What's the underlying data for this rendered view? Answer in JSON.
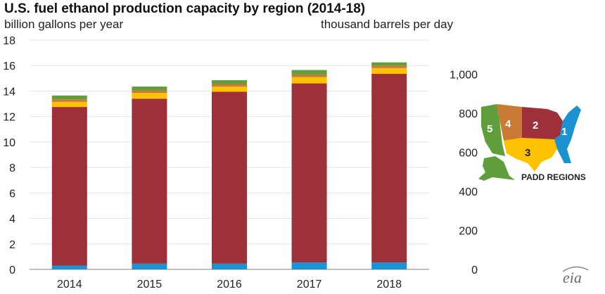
{
  "chart_data": {
    "type": "bar",
    "stacked": true,
    "title": "U.S. fuel ethanol production capacity by region (2014-18)",
    "ylabel_left": "billion gallons per year",
    "ylabel_right": "thousand barrels per day",
    "categories": [
      "2014",
      "2015",
      "2016",
      "2017",
      "2018"
    ],
    "ylim_left": [
      0,
      18
    ],
    "yticks_left": [
      "0",
      "2",
      "4",
      "6",
      "8",
      "10",
      "12",
      "14",
      "16",
      "18"
    ],
    "ylim_right": [
      0,
      1174
    ],
    "yticks_right": [
      {
        "value": 0,
        "label": "0"
      },
      {
        "value": 200,
        "label": "200"
      },
      {
        "value": 400,
        "label": "400"
      },
      {
        "value": 600,
        "label": "600"
      },
      {
        "value": 800,
        "label": "800"
      },
      {
        "value": 1000,
        "label": "1,000"
      }
    ],
    "series": [
      {
        "name": "1",
        "color": "#1b93d1",
        "values": [
          0.3,
          0.45,
          0.45,
          0.55,
          0.55
        ]
      },
      {
        "name": "2",
        "color": "#9e3039",
        "values": [
          12.45,
          12.95,
          13.5,
          14.05,
          14.8
        ]
      },
      {
        "name": "3",
        "color": "#fdc100",
        "values": [
          0.4,
          0.45,
          0.4,
          0.5,
          0.45
        ]
      },
      {
        "name": "4",
        "color": "#c97a35",
        "values": [
          0.2,
          0.2,
          0.2,
          0.2,
          0.2
        ]
      },
      {
        "name": "5",
        "color": "#5f9e3a",
        "values": [
          0.3,
          0.3,
          0.3,
          0.35,
          0.25
        ]
      }
    ],
    "grid": true,
    "legend": "map-right"
  },
  "legend_map": {
    "title": "PADD REGIONS",
    "regions": [
      {
        "label": "1",
        "color": "#1b93d1"
      },
      {
        "label": "2",
        "color": "#9e3039"
      },
      {
        "label": "3",
        "color": "#fdc100"
      },
      {
        "label": "4",
        "color": "#c97a35"
      },
      {
        "label": "5",
        "color": "#5f9e3a"
      }
    ]
  },
  "logo": {
    "text": "eia"
  }
}
